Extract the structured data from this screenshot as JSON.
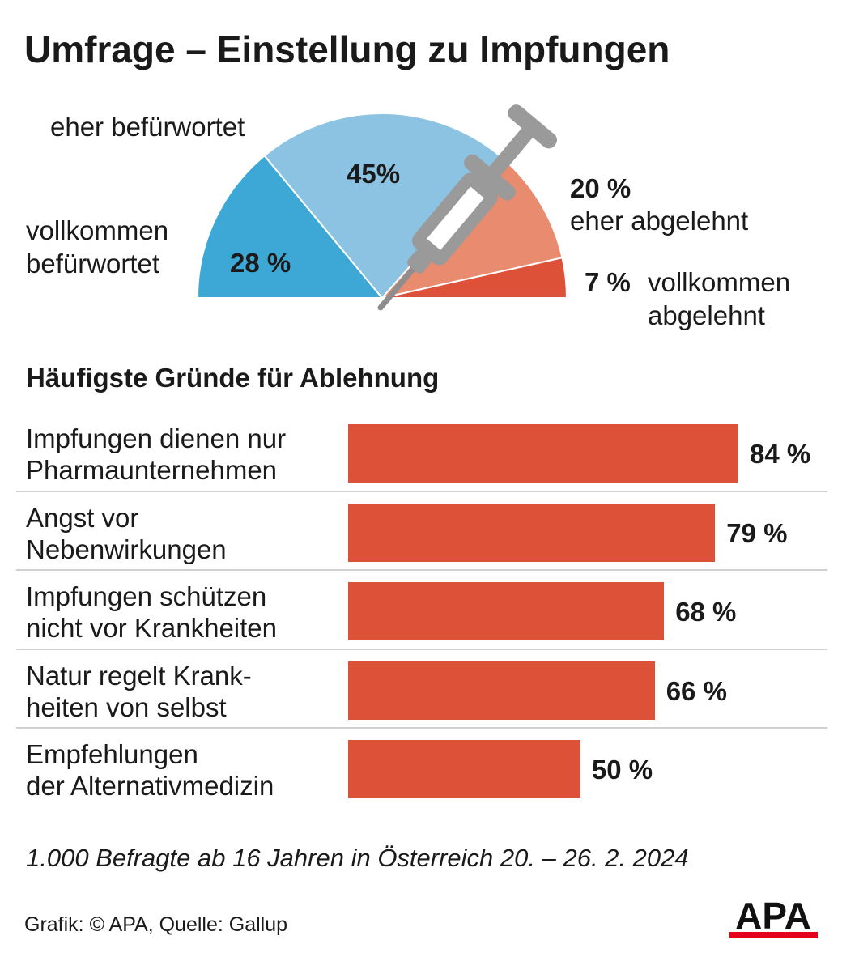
{
  "title": "Umfrage – Einstellung zu Impfungen",
  "colors": {
    "vollkommen_befuerwortet": "#3da8d6",
    "eher_befuerwortet": "#8cc2e2",
    "eher_abgelehnt": "#e98b6e",
    "vollkommen_abgelehnt": "#dd5138",
    "bar": "#dd5138",
    "syringe": "#9a9a9a",
    "logo_red": "#e2001a"
  },
  "pie": {
    "slices": [
      {
        "label": "vollkommen befürwortet",
        "value_label": "28 %"
      },
      {
        "label": "eher befürwortet",
        "value_label": "45%"
      },
      {
        "label": "eher abgelehnt",
        "value_label": "20 %"
      },
      {
        "label": "vollkommen abgelehnt",
        "value_label": "7 %"
      }
    ]
  },
  "bars_title": "Häufigste Gründe für Ablehnung",
  "footnote": "1.000 Befragte ab 16 Jahren in Österreich 20. – 26. 2. 2024",
  "source": "Grafik: © APA, Quelle: Gallup",
  "logo": "APA",
  "chart_data": [
    {
      "type": "pie",
      "subtype": "half-donut",
      "labels": [
        "vollkommen befürwortet",
        "eher befürwortet",
        "eher abgelehnt",
        "vollkommen abgelehnt"
      ],
      "values": [
        28,
        45,
        20,
        7
      ],
      "unit": "%",
      "icon": "syringe-icon"
    },
    {
      "type": "bar",
      "orientation": "horizontal",
      "title": "Häufigste Gründe für Ablehnung",
      "categories": [
        "Impfungen dienen nur\nPharmaunternehmen",
        "Angst vor\nNebenwirkungen",
        "Impfungen schützen\nnicht vor Krankheiten",
        "Natur regelt Krank-\nheiten von selbst",
        "Empfehlungen\nder Alternativmedizin"
      ],
      "values": [
        84,
        79,
        68,
        66,
        50
      ],
      "value_labels": [
        "84 %",
        "79 %",
        "68 %",
        "66 %",
        "50 %"
      ],
      "unit": "%",
      "xlim": [
        0,
        100
      ],
      "grid": false
    }
  ]
}
